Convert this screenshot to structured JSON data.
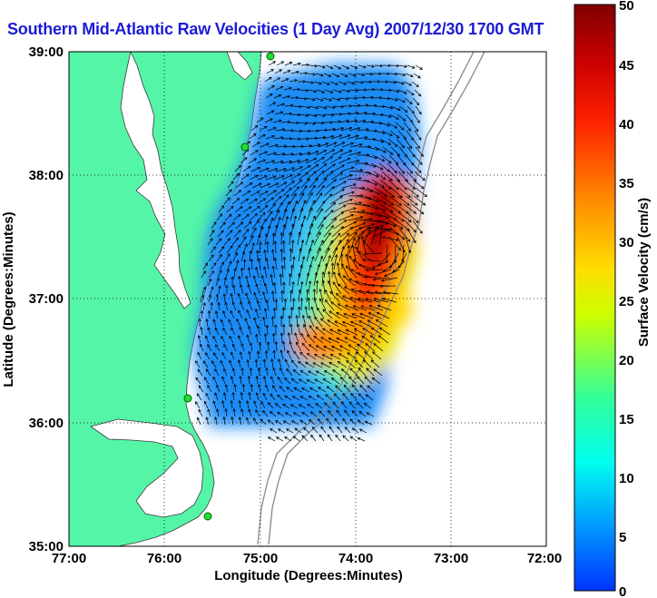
{
  "title": "Southern Mid-Atlantic Raw Velocities (1 Day Avg) 2007/12/30 1700 GMT",
  "x_axis": {
    "label": "Longitude (Degrees:Minutes)",
    "ticks": [
      "77:00",
      "76:00",
      "75:00",
      "74:00",
      "73:00",
      "72:00"
    ]
  },
  "y_axis": {
    "label": "Latitude (Degrees:Minutes)",
    "ticks": [
      "39:00",
      "38:00",
      "37:00",
      "36:00",
      "35:00"
    ]
  },
  "colorbar": {
    "label": "Surface Velocity (cm/s)",
    "ticks": [
      "50",
      "45",
      "40",
      "35",
      "30",
      "25",
      "20",
      "15",
      "10",
      "5",
      "0"
    ],
    "min": 0,
    "max": 50,
    "colors": [
      "#0033ff",
      "#0099ff",
      "#00ffee",
      "#33ff99",
      "#ccff00",
      "#ffdd00",
      "#ff8800",
      "#ff2200",
      "#cc0000",
      "#800000"
    ]
  },
  "map": {
    "lon_range": [
      -77,
      -72
    ],
    "lat_range": [
      35,
      39
    ],
    "land_color": "#55f5a8",
    "coastline_color": "#3a3a3a",
    "bathymetry_color": "#888888",
    "grid": "dotted",
    "station_markers": 4
  }
}
